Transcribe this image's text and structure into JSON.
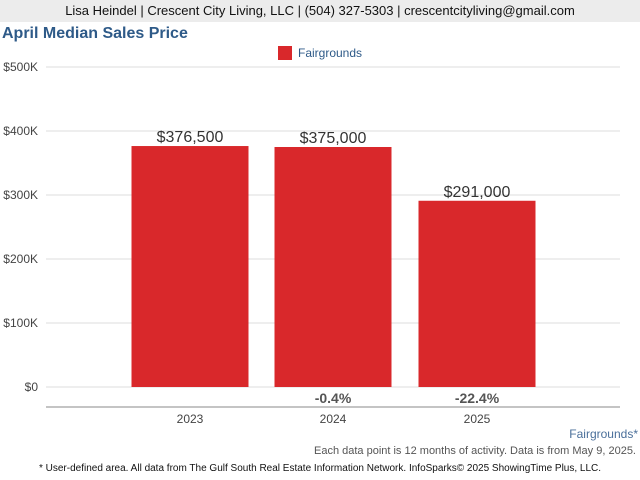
{
  "header": {
    "contact": "Lisa Heindel | Crescent City Living, LLC | (504) 327-5303 | crescentcityliving@gmail.com"
  },
  "chart_data": {
    "type": "bar",
    "title": "April Median Sales Price",
    "categories": [
      "2023",
      "2024",
      "2025"
    ],
    "series": [
      {
        "name": "Fairgrounds",
        "color": "#d9282b",
        "values": [
          376500,
          375000,
          291000
        ]
      }
    ],
    "value_labels": [
      "$376,500",
      "$375,000",
      "$291,000"
    ],
    "change_labels": [
      "",
      "-0.4%",
      "-22.4%"
    ],
    "y_ticks": [
      "$0",
      "$100K",
      "$200K",
      "$300K",
      "$400K",
      "$500K"
    ],
    "ylim": [
      0,
      500000
    ],
    "grid": true,
    "legend_position": "top-center"
  },
  "footer": {
    "region": "Fairgrounds*",
    "note": "Each data point is 12 months of activity. Data is from May 9, 2025.",
    "disclaimer": "* User-defined area. All data from The Gulf South Real Estate Information Network. InfoSparks© 2025 ShowingTime Plus, LLC."
  }
}
